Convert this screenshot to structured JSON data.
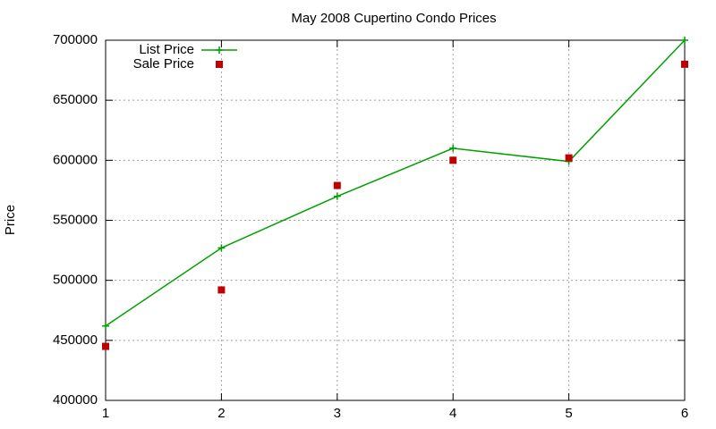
{
  "chart_data": {
    "type": "line",
    "title": "May 2008 Cupertino Condo Prices",
    "y_label": "Price",
    "x": [
      1,
      2,
      3,
      4,
      5,
      6
    ],
    "xlim": [
      1,
      6
    ],
    "xticks": [
      1,
      2,
      3,
      4,
      5,
      6
    ],
    "ylim": [
      400000,
      700000
    ],
    "yticks": [
      400000,
      450000,
      500000,
      550000,
      600000,
      650000,
      700000
    ],
    "grid": true,
    "legend": "top-left",
    "series": [
      {
        "name": "List Price",
        "color": "#00a000",
        "style": "linespoints",
        "marker": "plus",
        "values": [
          462000,
          527000,
          570000,
          610000,
          599000,
          700000
        ]
      },
      {
        "name": "Sale Price",
        "color": "#c00000",
        "style": "points",
        "marker": "square",
        "values": [
          445000,
          492000,
          579000,
          600000,
          602000,
          680000
        ]
      }
    ]
  }
}
